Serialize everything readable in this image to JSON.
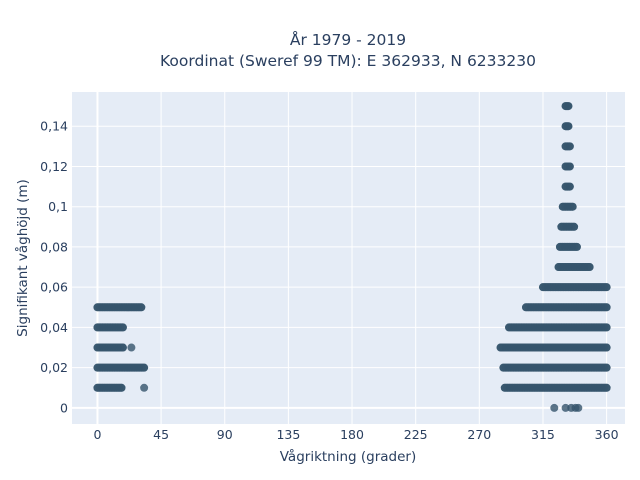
{
  "chart_data": {
    "type": "scatter",
    "title_line1": "År 1979 - 2019",
    "title_line2": "Koordinat (Sweref 99 TM): E 362933, N 6233230",
    "xlabel": "Vågriktning (grader)",
    "ylabel": "Signifikant våghöjd (m)",
    "xlim": [
      -18,
      373
    ],
    "ylim": [
      -0.008,
      0.157
    ],
    "x_ticks": [
      0,
      45,
      90,
      135,
      180,
      225,
      270,
      315,
      360
    ],
    "x_tick_labels": [
      "0",
      "45",
      "90",
      "135",
      "180",
      "225",
      "270",
      "315",
      "360"
    ],
    "y_ticks": [
      0,
      0.02,
      0.04,
      0.06,
      0.08,
      0.1,
      0.12,
      0.14
    ],
    "y_tick_labels": [
      "0",
      "0,02",
      "0,04",
      "0,06",
      "0,08",
      "0,1",
      "0,12",
      "0,14"
    ],
    "grid": true,
    "legend": "none",
    "plot_background": "#e5ecf6",
    "marker_color": "#34546b",
    "bands": [
      {
        "y": 0.01,
        "x_start": 0,
        "x_end": 17
      },
      {
        "y": 0.02,
        "x_start": 0,
        "x_end": 33
      },
      {
        "y": 0.03,
        "x_start": 0,
        "x_end": 18
      },
      {
        "y": 0.04,
        "x_start": 0,
        "x_end": 18
      },
      {
        "y": 0.05,
        "x_start": 0,
        "x_end": 31
      },
      {
        "y": 0.01,
        "x_start": 288,
        "x_end": 360
      },
      {
        "y": 0.02,
        "x_start": 287,
        "x_end": 360
      },
      {
        "y": 0.03,
        "x_start": 285,
        "x_end": 360
      },
      {
        "y": 0.04,
        "x_start": 291,
        "x_end": 360
      },
      {
        "y": 0.05,
        "x_start": 303,
        "x_end": 360
      },
      {
        "y": 0.06,
        "x_start": 315,
        "x_end": 360
      },
      {
        "y": 0.07,
        "x_start": 326,
        "x_end": 348
      },
      {
        "y": 0.08,
        "x_start": 327,
        "x_end": 339
      },
      {
        "y": 0.09,
        "x_start": 328,
        "x_end": 337
      },
      {
        "y": 0.1,
        "x_start": 329,
        "x_end": 336
      },
      {
        "y": 0.11,
        "x_start": 331,
        "x_end": 334
      },
      {
        "y": 0.12,
        "x_start": 331,
        "x_end": 334
      },
      {
        "y": 0.13,
        "x_start": 331,
        "x_end": 334
      },
      {
        "y": 0.14,
        "x_start": 331,
        "x_end": 333
      },
      {
        "y": 0.15,
        "x_start": 331,
        "x_end": 333
      }
    ],
    "points": [
      {
        "x": 24,
        "y": 0.03
      },
      {
        "x": 33,
        "y": 0.01
      },
      {
        "x": 323,
        "y": 0
      },
      {
        "x": 331,
        "y": 0
      },
      {
        "x": 335,
        "y": 0
      },
      {
        "x": 338,
        "y": 0
      },
      {
        "x": 340,
        "y": 0
      }
    ]
  }
}
